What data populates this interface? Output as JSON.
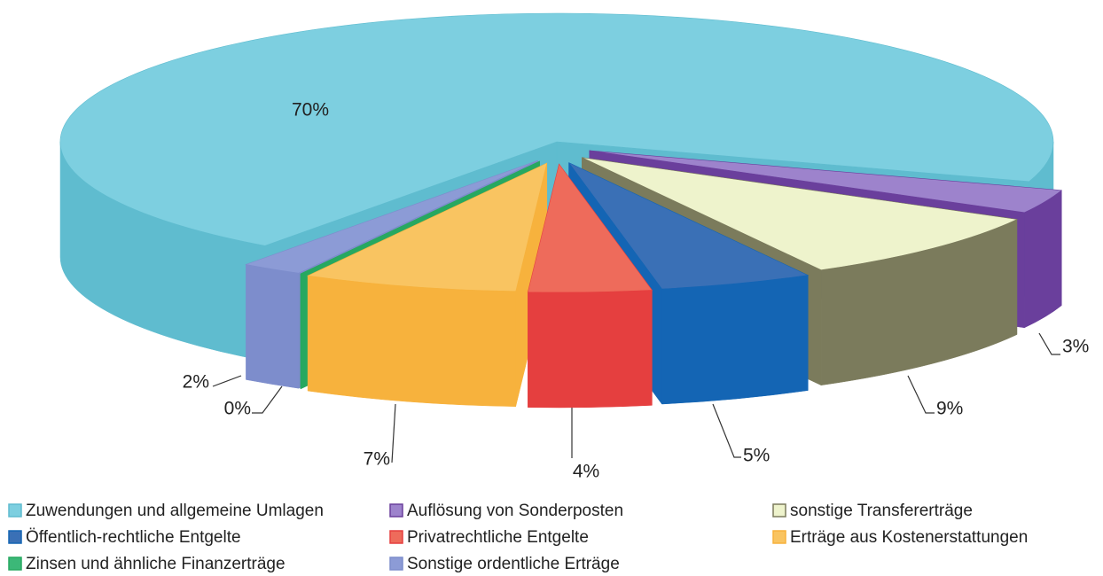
{
  "chart_data": {
    "type": "pie3d",
    "categories": [
      "Zuwendungen und allgemeine Umlagen",
      "Auflösung von Sonderposten",
      "sonstige Transfererträge",
      "Öffentlich-rechtliche Entgelte",
      "Privatrechtliche Entgelte",
      "Erträge aus Kostenerstattungen",
      "Zinsen und ähnliche Finanzerträge",
      "Sonstige ordentliche Erträge"
    ],
    "values": [
      70,
      3,
      9,
      5,
      4,
      7,
      0,
      2
    ],
    "value_labels": [
      "70%",
      "3%",
      "9%",
      "5%",
      "4%",
      "7%",
      "0%",
      "2%"
    ],
    "colors": [
      "#7dcfe0",
      "#9d83cc",
      "#eef3cc",
      "#3a70b6",
      "#ee6b5b",
      "#f9c461",
      "#3cb878",
      "#8c9bd6"
    ],
    "side_colors": [
      "#5fbccf",
      "#6a3f9c",
      "#7b7b5c",
      "#1465b4",
      "#e53f3f",
      "#f7b23d",
      "#27a860",
      "#7d8dcc"
    ],
    "legend": "bottom"
  }
}
